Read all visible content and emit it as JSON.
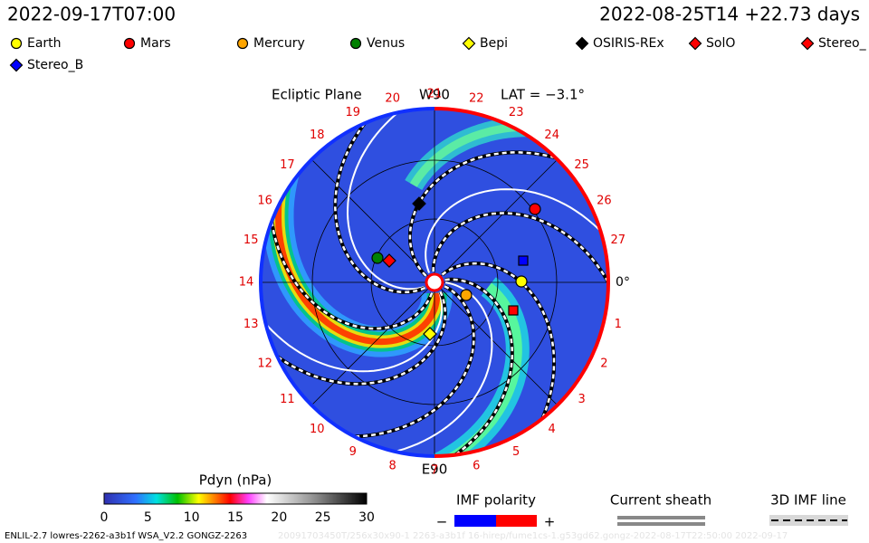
{
  "header": {
    "left": "2022-09-17T07:00",
    "right": "2022-08-25T14 +22.73 days"
  },
  "legend": {
    "items": [
      {
        "label": "Earth",
        "color": "#ffff00",
        "shape": "circle"
      },
      {
        "label": "Mars",
        "color": "#ff0000",
        "shape": "circle"
      },
      {
        "label": "Mercury",
        "color": "#ffa500",
        "shape": "circle"
      },
      {
        "label": "Venus",
        "color": "#008000",
        "shape": "circle"
      },
      {
        "label": "Bepi",
        "color": "#ffff00",
        "shape": "diamond"
      },
      {
        "label": "OSIRIS-REx",
        "color": "#000000",
        "shape": "diamond"
      },
      {
        "label": "SolO",
        "color": "#ff0000",
        "shape": "diamond"
      },
      {
        "label": "Stereo_",
        "color": "#ff0000",
        "shape": "diamond"
      },
      {
        "label": "Stereo_B",
        "color": "#0000ff",
        "shape": "diamond"
      }
    ]
  },
  "plot": {
    "title": "Ecliptic Plane",
    "top_label": "W90",
    "lat": "LAT = −3.1°",
    "bottom_label": "E90",
    "longitudes": [
      "0°",
      "1",
      "2",
      "3",
      "4",
      "5",
      "6",
      "7",
      "8",
      "9",
      "10",
      "11",
      "12",
      "13",
      "14",
      "15",
      "16",
      "17",
      "18",
      "19",
      "20",
      "21",
      "22",
      "23",
      "24",
      "25",
      "26",
      "27"
    ]
  },
  "colorbar": {
    "title": "Pdyn (nPa)",
    "ticks": [
      0,
      5,
      10,
      15,
      20,
      25,
      30
    ]
  },
  "imf": {
    "title": "IMF polarity",
    "minus": "−",
    "plus": "+"
  },
  "sheath": {
    "title": "Current sheath"
  },
  "imf_line": {
    "title": "3D IMF line"
  },
  "footer": {
    "left": "ENLIL-2.7 lowres-2262-a3b1f WSA_V2.2 GONGZ-2263",
    "right": "20091703450T/256x30x90-1 2263-a3b1f 16-hirep/fume1cs-1.g53gd62.gongz-2022-08-17T22:50:00   2022-09-17"
  }
}
